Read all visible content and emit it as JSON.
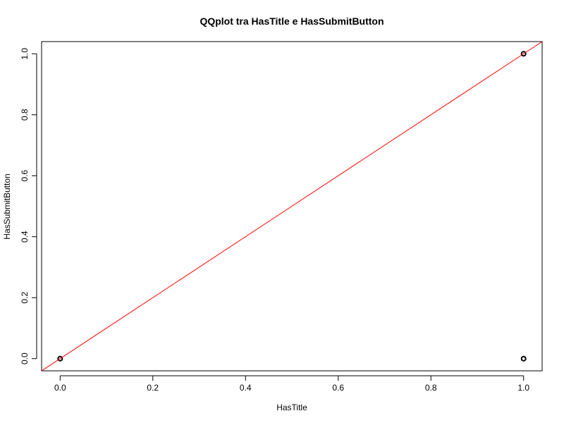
{
  "chart_data": {
    "type": "scatter",
    "title": "QQplot tra HasTitle e HasSubmitButton",
    "xlabel": "HasTitle",
    "ylabel": "HasSubmitButton",
    "xlim": [
      -0.04,
      1.04
    ],
    "ylim": [
      -0.04,
      1.04
    ],
    "xticks": [
      0.0,
      0.2,
      0.4,
      0.6,
      0.8,
      1.0
    ],
    "xtick_labels": [
      "0.0",
      "0.2",
      "0.4",
      "0.6",
      "0.8",
      "1.0"
    ],
    "yticks": [
      0.0,
      0.2,
      0.4,
      0.6,
      0.8,
      1.0
    ],
    "ytick_labels": [
      "0.0",
      "0.2",
      "0.4",
      "0.6",
      "0.8",
      "1.0"
    ],
    "grid": false,
    "legend": "none",
    "series": [
      {
        "x": [
          0.0,
          1.0,
          1.0
        ],
        "y": [
          0.0,
          0.0,
          1.0
        ],
        "marker": "open-circle",
        "color": "#000000"
      }
    ],
    "reference_line": {
      "slope": 1,
      "intercept": 0,
      "color": "#ff0000"
    }
  }
}
